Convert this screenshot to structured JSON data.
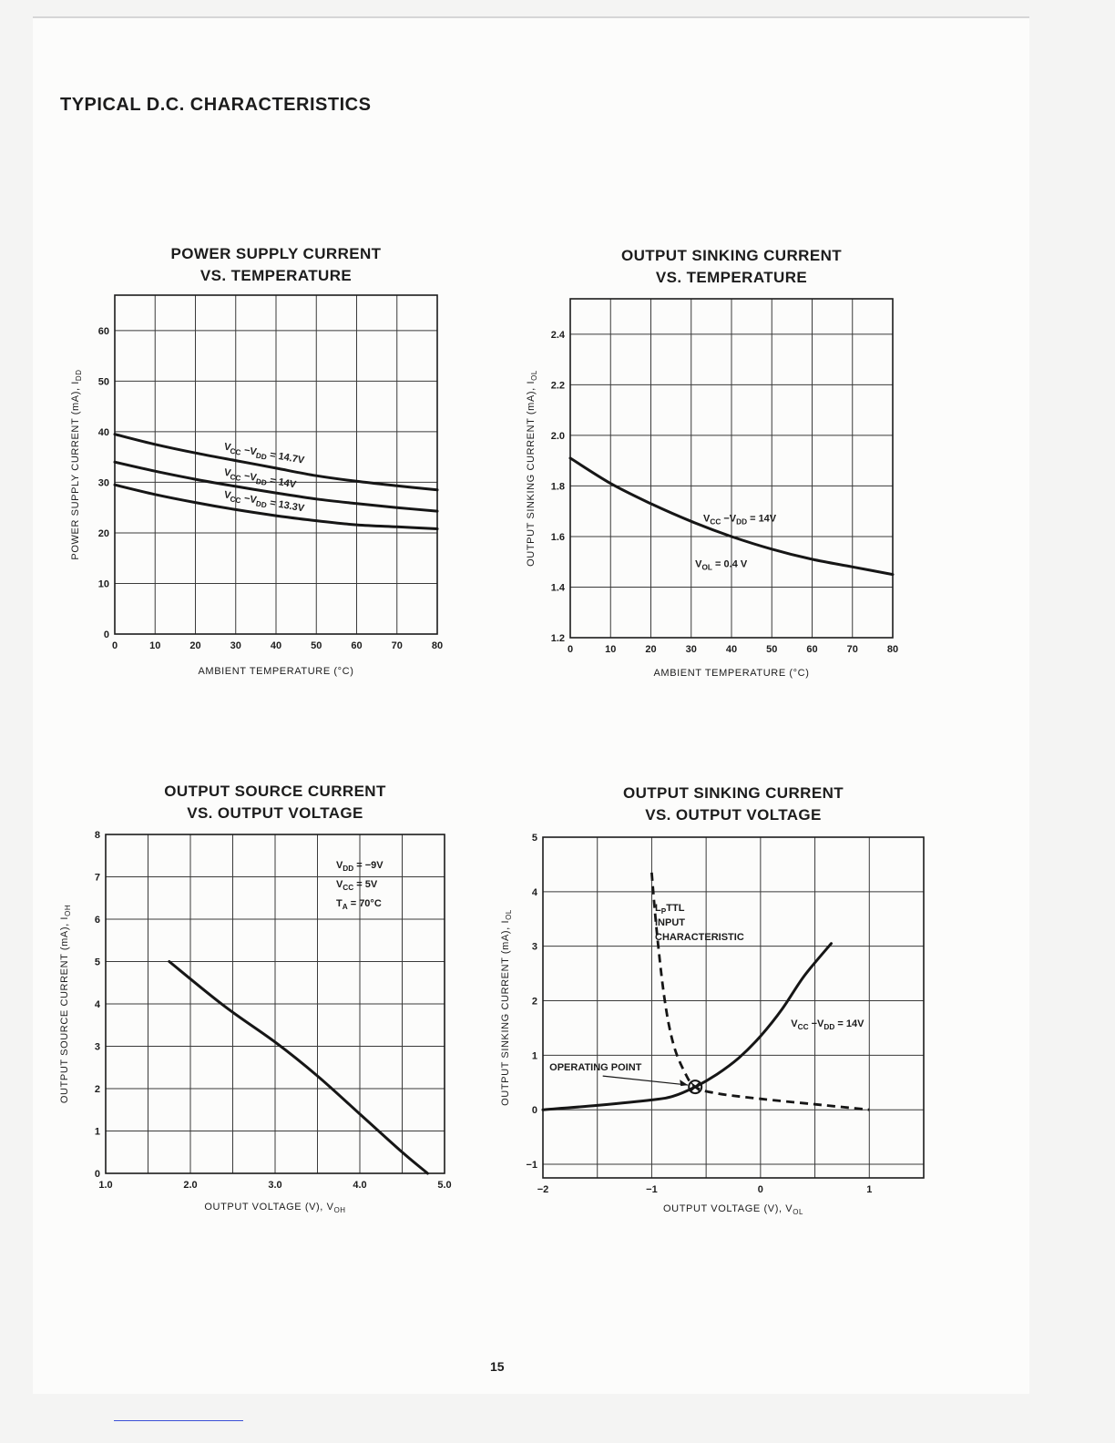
{
  "page": {
    "heading": "TYPICAL D.C. CHARACTERISTICS",
    "page_number": "15"
  },
  "chart_data": [
    {
      "type": "line",
      "title": [
        "POWER SUPPLY CURRENT",
        "VS. TEMPERATURE"
      ],
      "xlabel": "AMBIENT TEMPERATURE (°C)",
      "ylabel": "POWER SUPPLY CURRENT (mA), I",
      "ylabel_sub": "DD",
      "xlim": [
        0,
        80
      ],
      "ylim": [
        0,
        67
      ],
      "xticks": [
        0,
        10,
        20,
        30,
        40,
        50,
        60,
        70,
        80
      ],
      "yticks": [
        0,
        10,
        20,
        30,
        40,
        50,
        60
      ],
      "grid": true,
      "series": [
        {
          "name": "VCC − VDD = 14.7V",
          "x": [
            0,
            10,
            20,
            30,
            40,
            50,
            60,
            70,
            80
          ],
          "y": [
            39.5,
            37.5,
            35.8,
            34.3,
            32.8,
            31.3,
            30.2,
            29.3,
            28.5
          ]
        },
        {
          "name": "VCC − VDD = 14V",
          "x": [
            0,
            10,
            20,
            30,
            40,
            50,
            60,
            70,
            80
          ],
          "y": [
            34,
            32.2,
            30.6,
            29.2,
            27.9,
            26.7,
            25.8,
            25.0,
            24.3
          ]
        },
        {
          "name": "VCC − VDD = 13.3V",
          "x": [
            0,
            10,
            20,
            30,
            40,
            50,
            60,
            70,
            80
          ],
          "y": [
            29.5,
            27.6,
            26.0,
            24.6,
            23.4,
            22.4,
            21.6,
            21.2,
            20.8
          ]
        }
      ],
      "annotations": [
        {
          "parts": [
            [
              "V",
              ""
            ],
            [
              "CC",
              "sub"
            ],
            [
              " −V",
              ""
            ],
            [
              "DD",
              "sub"
            ],
            [
              " = 14.7V",
              ""
            ]
          ],
          "x": 27,
          "y": 36.5,
          "angle": 10
        },
        {
          "parts": [
            [
              "V",
              ""
            ],
            [
              "CC",
              "sub"
            ],
            [
              " −V",
              ""
            ],
            [
              "DD",
              "sub"
            ],
            [
              " = 14V",
              ""
            ]
          ],
          "x": 27,
          "y": 31.4,
          "angle": 10
        },
        {
          "parts": [
            [
              "V",
              ""
            ],
            [
              "CC",
              "sub"
            ],
            [
              " −V",
              ""
            ],
            [
              "DD",
              "sub"
            ],
            [
              " = 13.3V",
              ""
            ]
          ],
          "x": 27,
          "y": 27.0,
          "angle": 10
        }
      ]
    },
    {
      "type": "line",
      "title": [
        "OUTPUT SINKING CURRENT",
        "VS. TEMPERATURE"
      ],
      "xlabel": "AMBIENT TEMPERATURE (°C)",
      "ylabel": "OUTPUT SINKING CURRENT (mA), I",
      "ylabel_sub": "OL",
      "xlim": [
        0,
        80
      ],
      "ylim": [
        1.2,
        2.54
      ],
      "xticks": [
        0,
        10,
        20,
        30,
        40,
        50,
        60,
        70,
        80
      ],
      "yticks": [
        1.2,
        1.4,
        1.6,
        1.8,
        2.0,
        2.2,
        2.4
      ],
      "ytick_labels": [
        "1.2",
        "1.4",
        "1.6",
        "1.8",
        "2.0",
        "2.2",
        "2.4"
      ],
      "grid": true,
      "series": [
        {
          "name": "VCC − VDD = 14V",
          "x": [
            0,
            10,
            20,
            30,
            40,
            50,
            60,
            70,
            80
          ],
          "y": [
            1.91,
            1.81,
            1.73,
            1.66,
            1.6,
            1.55,
            1.51,
            1.48,
            1.45
          ]
        }
      ],
      "annotations": [
        {
          "parts": [
            [
              "V",
              ""
            ],
            [
              "CC",
              "sub"
            ],
            [
              " −V",
              ""
            ],
            [
              "DD",
              "sub"
            ],
            [
              "  = 14V",
              ""
            ]
          ],
          "x": 33,
          "y": 1.66,
          "angle": 0
        },
        {
          "parts": [
            [
              "V",
              ""
            ],
            [
              "OL",
              "sub"
            ],
            [
              " = 0.4 V",
              ""
            ]
          ],
          "x": 31,
          "y": 1.48,
          "angle": 0
        }
      ]
    },
    {
      "type": "line",
      "title": [
        "OUTPUT SOURCE CURRENT",
        "VS. OUTPUT VOLTAGE"
      ],
      "xlabel": "OUTPUT VOLTAGE (V), V",
      "xlabel_sub": "OH",
      "ylabel": "OUTPUT SOURCE CURRENT (mA), I",
      "ylabel_sub": "OH",
      "xlim": [
        1.0,
        5.0
      ],
      "ylim": [
        0,
        8
      ],
      "xticks": [
        1.0,
        1.5,
        2.0,
        2.5,
        3.0,
        3.5,
        4.0,
        4.5,
        5.0
      ],
      "xtick_labels": [
        "1.0",
        "",
        "2.0",
        "",
        "3.0",
        "",
        "4.0",
        "",
        "5.0"
      ],
      "yticks": [
        0,
        1,
        2,
        3,
        4,
        5,
        6,
        7,
        8
      ],
      "grid": true,
      "series": [
        {
          "name": "",
          "x": [
            1.75,
            2.4,
            3.0,
            3.5,
            4.0,
            4.5,
            4.8
          ],
          "y": [
            5.0,
            3.95,
            3.1,
            2.3,
            1.4,
            0.5,
            0
          ]
        }
      ],
      "annotations": [
        {
          "parts": [
            [
              "V",
              ""
            ],
            [
              "DD",
              "sub"
            ],
            [
              "  = −9V",
              ""
            ]
          ],
          "x": 3.72,
          "y": 7.2,
          "angle": 0
        },
        {
          "parts": [
            [
              "V",
              ""
            ],
            [
              "CC",
              "sub"
            ],
            [
              "  = 5V",
              ""
            ]
          ],
          "x": 3.72,
          "y": 6.75,
          "angle": 0
        },
        {
          "parts": [
            [
              "T",
              ""
            ],
            [
              "A",
              "sub"
            ],
            [
              "   = 70°C",
              ""
            ]
          ],
          "x": 3.72,
          "y": 6.3,
          "angle": 0
        }
      ]
    },
    {
      "type": "line",
      "title": [
        "OUTPUT SINKING CURRENT",
        "VS. OUTPUT VOLTAGE"
      ],
      "xlabel": "OUTPUT VOLTAGE (V), V",
      "xlabel_sub": "OL",
      "ylabel": "OUTPUT SINKING CURRENT (mA), I",
      "ylabel_sub": "OL",
      "xlim": [
        -2,
        1.5
      ],
      "ylim": [
        -1.25,
        5
      ],
      "xticks": [
        -2,
        -1.5,
        -1,
        -0.5,
        0,
        0.5,
        1,
        1.5
      ],
      "xtick_labels": [
        "−2",
        "",
        "−1",
        "",
        "0",
        "",
        "1",
        ""
      ],
      "yticks": [
        -1,
        0,
        1,
        2,
        3,
        4,
        5
      ],
      "ytick_labels": [
        "−1",
        "0",
        "1",
        "2",
        "3",
        "4",
        "5"
      ],
      "grid": true,
      "series": [
        {
          "name": "VCC − VDD = 14V",
          "style": "solid",
          "x": [
            -2,
            -1.5,
            -1.0,
            -0.8,
            -0.6,
            -0.4,
            -0.2,
            0.0,
            0.2,
            0.4,
            0.65
          ],
          "y": [
            0,
            0.08,
            0.18,
            0.25,
            0.42,
            0.65,
            0.95,
            1.35,
            1.85,
            2.45,
            3.05
          ]
        },
        {
          "name": "LpTTL INPUT CHARACTERISTIC",
          "style": "dashed",
          "x": [
            -1.0,
            -0.95,
            -0.88,
            -0.8,
            -0.7,
            -0.6,
            -0.4,
            0.0,
            0.5,
            1.0
          ],
          "y": [
            4.35,
            3.2,
            2.0,
            1.2,
            0.7,
            0.42,
            0.3,
            0.2,
            0.1,
            0.0
          ]
        }
      ],
      "operating_point": {
        "x": -0.6,
        "y": 0.42,
        "label": "OPERATING  POINT"
      },
      "annotations": [
        {
          "parts": [
            [
              "L",
              ""
            ],
            [
              "P",
              "sub"
            ],
            [
              "TTL",
              ""
            ]
          ],
          "x": -0.97,
          "y": 3.65,
          "angle": 0
        },
        {
          "parts": [
            [
              "INPUT",
              ""
            ]
          ],
          "x": -0.97,
          "y": 3.38,
          "angle": 0
        },
        {
          "parts": [
            [
              "CHARACTERISTIC",
              ""
            ]
          ],
          "x": -0.97,
          "y": 3.11,
          "angle": 0
        },
        {
          "parts": [
            [
              "V",
              ""
            ],
            [
              "CC",
              "sub"
            ],
            [
              " −V",
              ""
            ],
            [
              "DD",
              "sub"
            ],
            [
              "  = 14V",
              ""
            ]
          ],
          "x": 0.28,
          "y": 1.52,
          "angle": 0
        },
        {
          "parts": [
            [
              "OPERATING  POINT",
              ""
            ]
          ],
          "x": -1.94,
          "y": 0.72,
          "angle": 0
        }
      ]
    }
  ]
}
